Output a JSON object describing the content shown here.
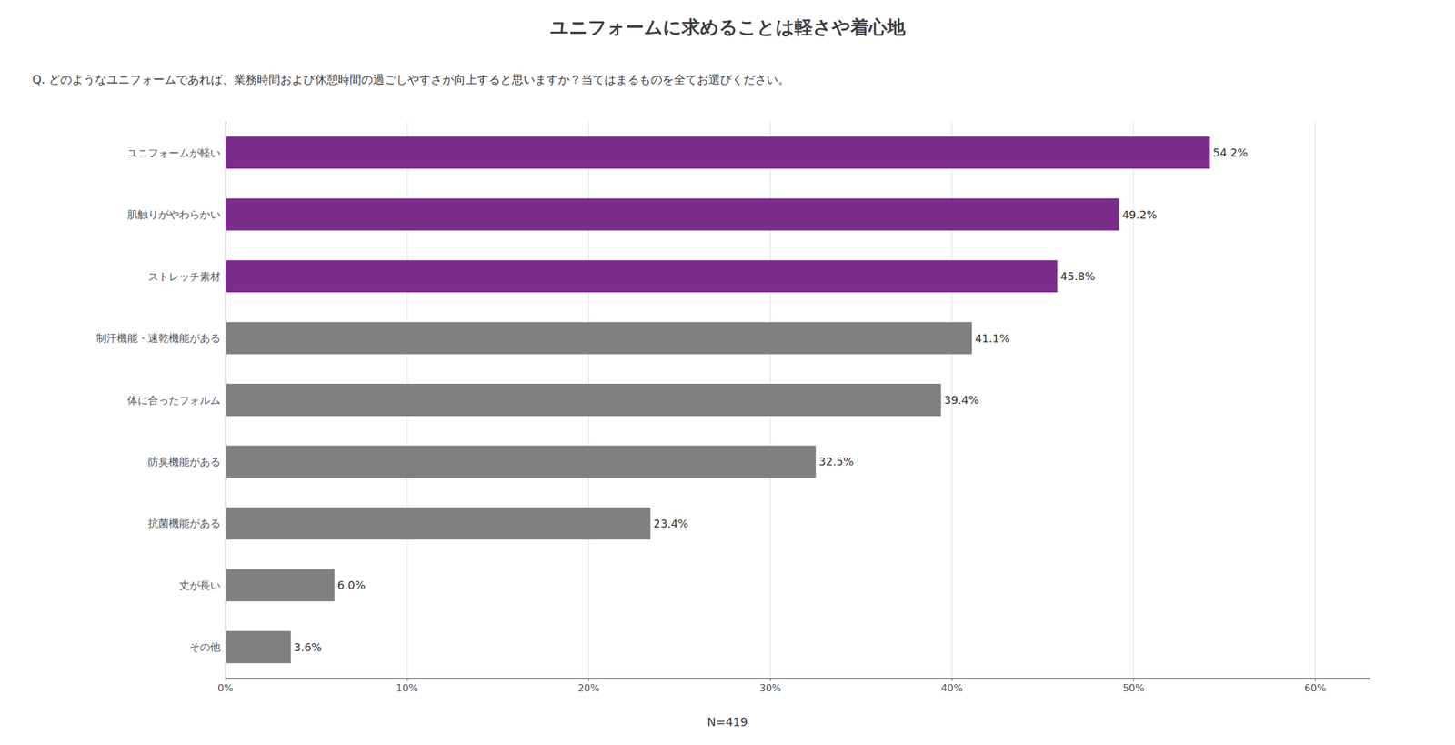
{
  "chart_data": {
    "type": "bar",
    "orientation": "horizontal",
    "title": "ユニフォームに求めることは軽さや着心地",
    "subtitle": "Q. どのようなユニフォームであれば、業務時間および休憩時間の過ごしやすさが向上すると思いますか？当てはまるものを全てお選びください。",
    "annotations": [
      "N=419"
    ],
    "categories": [
      "ユニフォームが軽い",
      "肌触りがやわらかい",
      "ストレッチ素材",
      "制汗機能・速乾機能がある",
      "体に合ったフォルム",
      "防臭機能がある",
      "抗菌機能がある",
      "丈が長い",
      "その他"
    ],
    "values": [
      54.2,
      49.2,
      45.8,
      41.1,
      39.4,
      32.5,
      23.4,
      6.0,
      3.6
    ],
    "value_labels": [
      "54.2%",
      "49.2%",
      "45.8%",
      "41.1%",
      "39.4%",
      "32.5%",
      "23.4%",
      "6.0%",
      "3.6%"
    ],
    "data_labels": true,
    "colors": [
      "#7b2d8b",
      "#7b2d8b",
      "#7b2d8b",
      "#808080",
      "#808080",
      "#808080",
      "#808080",
      "#808080",
      "#808080"
    ],
    "xlim": [
      0,
      63
    ],
    "xticks": [
      {
        "value": 0,
        "label": "0%"
      },
      {
        "value": 10,
        "label": "10%"
      },
      {
        "value": 20,
        "label": "20%"
      },
      {
        "value": 30,
        "label": "30%"
      },
      {
        "value": 40,
        "label": "40%"
      },
      {
        "value": 50,
        "label": "50%"
      },
      {
        "value": 60,
        "label": "60%"
      }
    ],
    "grid": true
  }
}
